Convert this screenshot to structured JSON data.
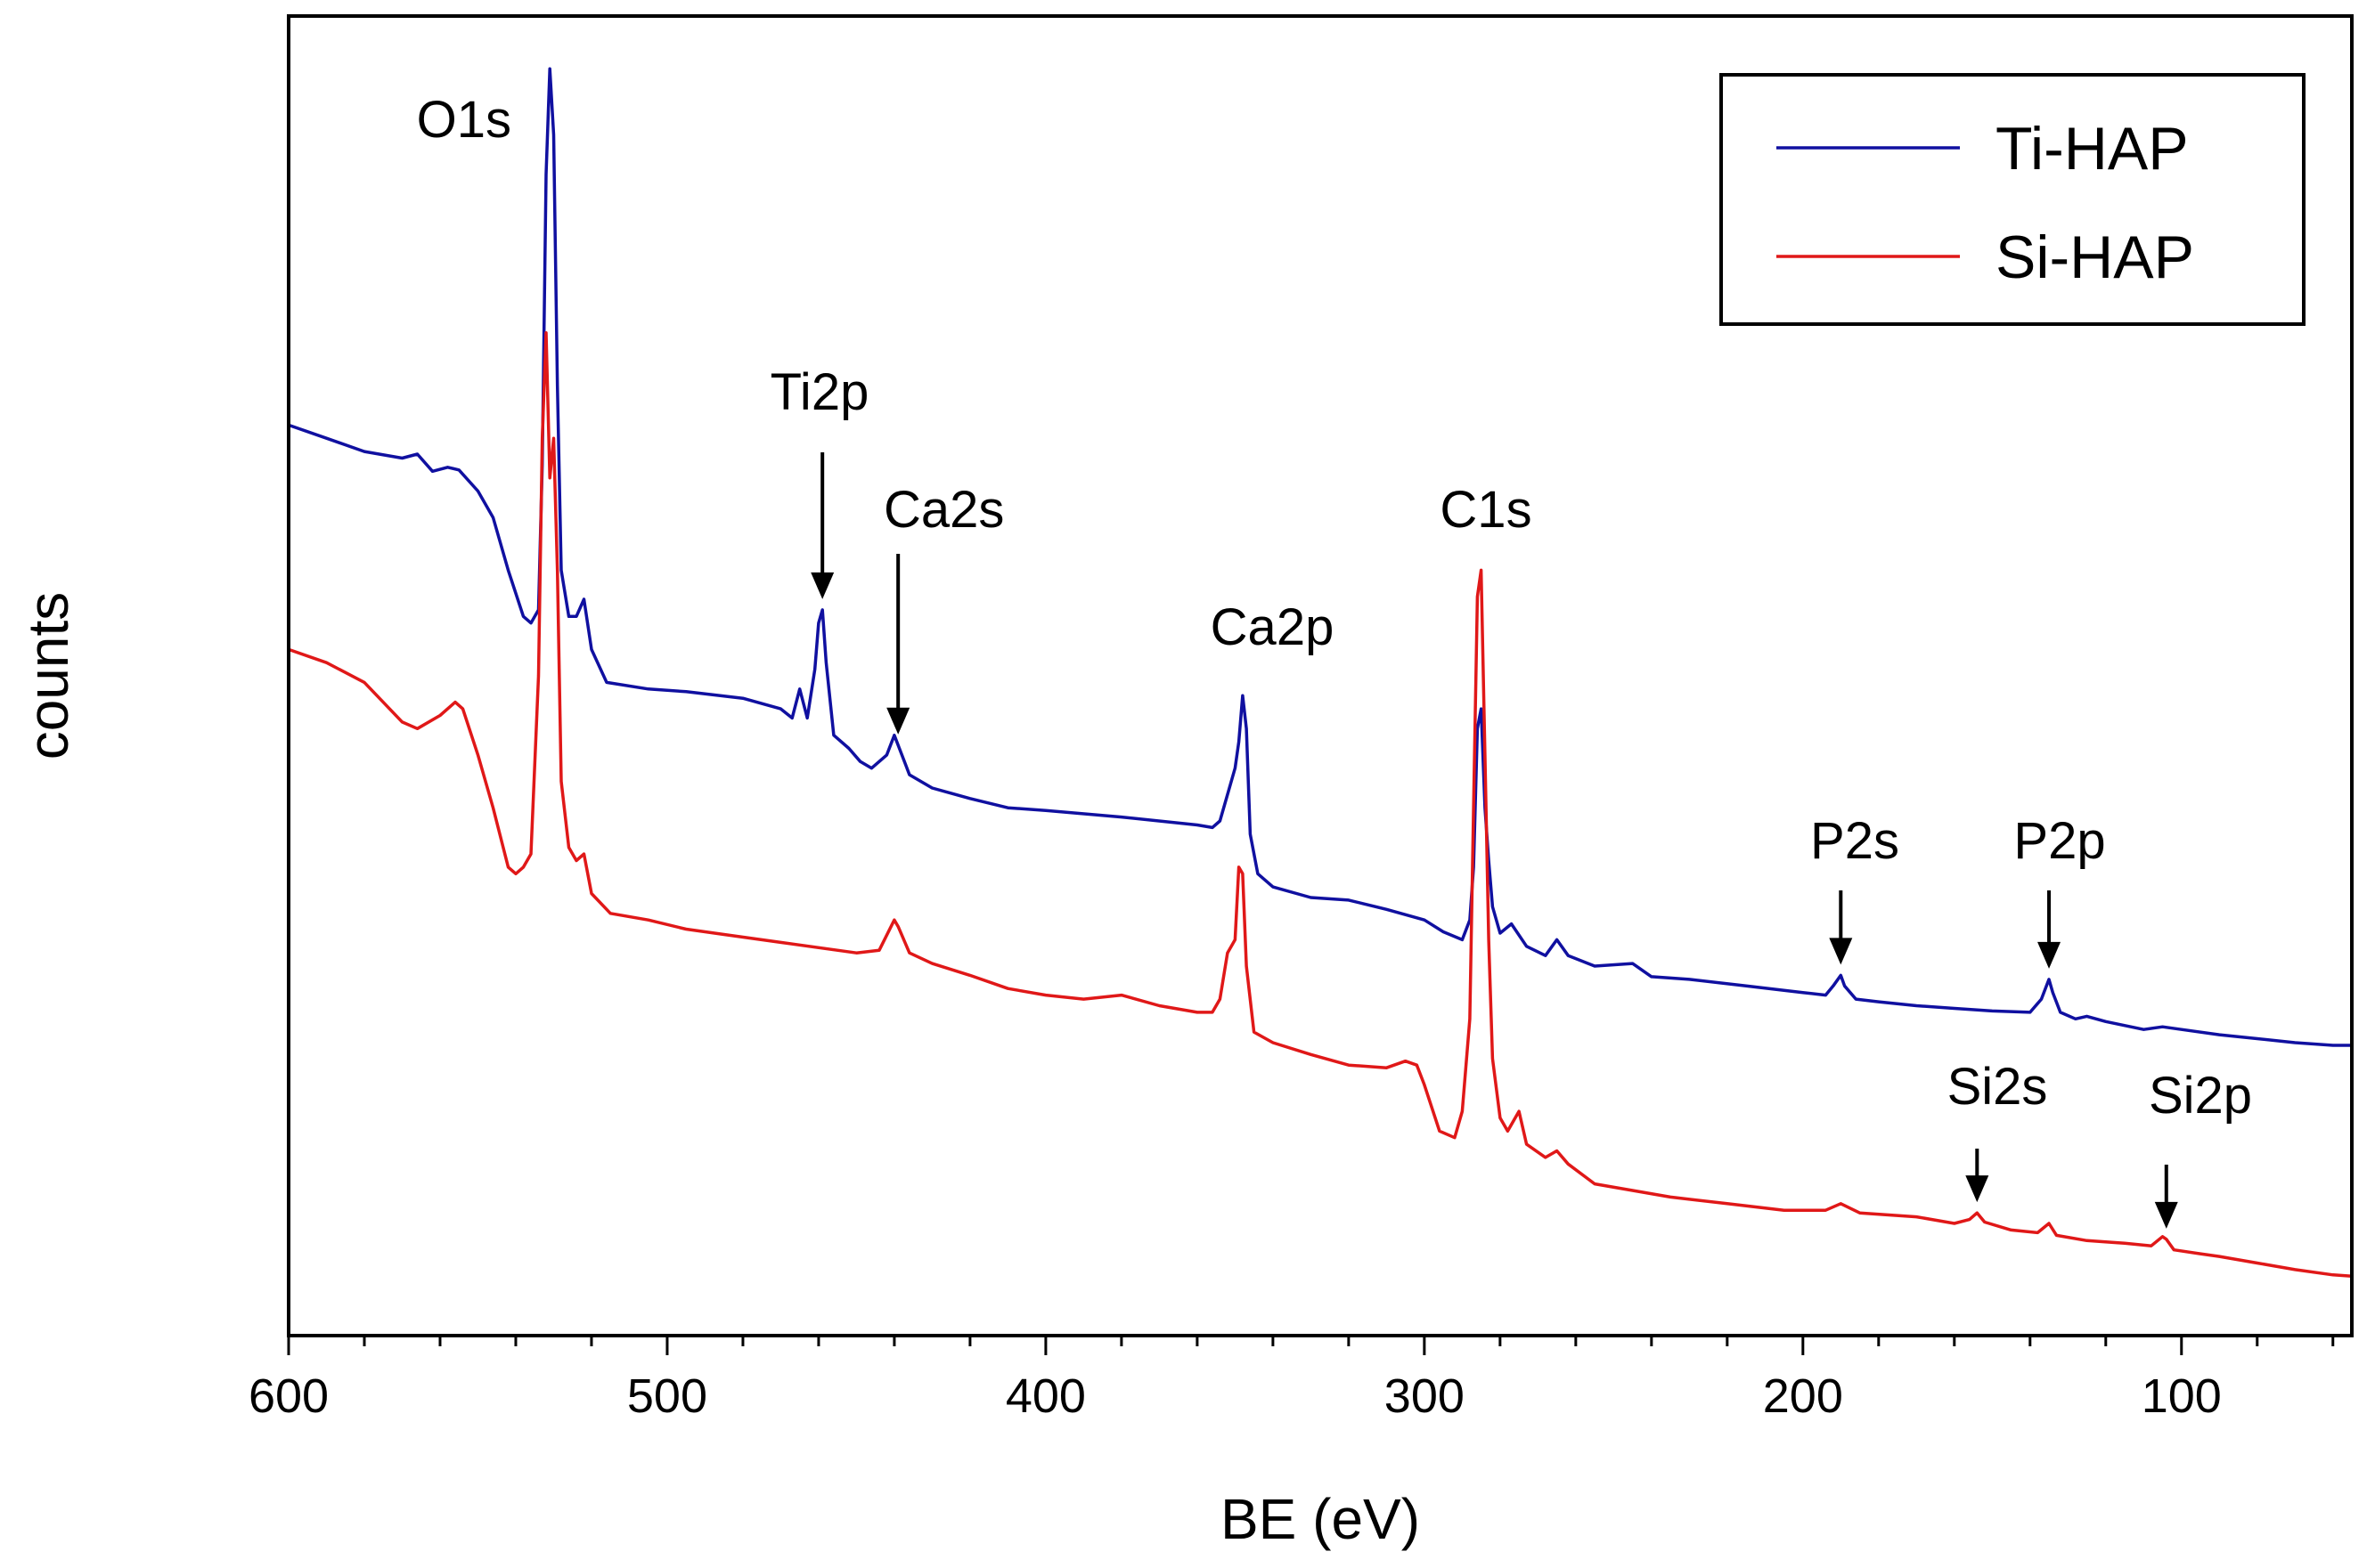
{
  "chart_data": {
    "type": "line",
    "title": "",
    "xlabel": "BE (eV)",
    "ylabel": "counts",
    "xlim": [
      600,
      55
    ],
    "x_reversed": true,
    "ylim": [
      0,
      100
    ],
    "y_ticks_visible": false,
    "grid": false,
    "x_ticks": [
      600,
      500,
      400,
      300,
      200,
      100
    ],
    "x_tick_labels": [
      "600",
      "500",
      "400",
      "300",
      "200",
      "100"
    ],
    "legend": {
      "position": "top-right",
      "entries": [
        "Ti-HAP",
        "Si-HAP"
      ]
    },
    "series": [
      {
        "name": "Ti-HAP",
        "color": "#1010a0",
        "points": [
          [
            600,
            69.0
          ],
          [
            590,
            68.0
          ],
          [
            580,
            67.0
          ],
          [
            570,
            66.5
          ],
          [
            566,
            66.8
          ],
          [
            562,
            65.5
          ],
          [
            558,
            65.8
          ],
          [
            555,
            65.6
          ],
          [
            550,
            64.0
          ],
          [
            546,
            62.0
          ],
          [
            542,
            58.0
          ],
          [
            538,
            54.5
          ],
          [
            536,
            54.0
          ],
          [
            534,
            55.0
          ],
          [
            533,
            66.0
          ],
          [
            532,
            88.0
          ],
          [
            531,
            96.0
          ],
          [
            530,
            91.0
          ],
          [
            529,
            72.0
          ],
          [
            528,
            58.0
          ],
          [
            526,
            54.5
          ],
          [
            524,
            54.5
          ],
          [
            522,
            55.8
          ],
          [
            520,
            52.0
          ],
          [
            516,
            49.5
          ],
          [
            505,
            49.0
          ],
          [
            495,
            48.8
          ],
          [
            480,
            48.3
          ],
          [
            470,
            47.5
          ],
          [
            467,
            46.8
          ],
          [
            465,
            49.0
          ],
          [
            463,
            46.8
          ],
          [
            461,
            50.5
          ],
          [
            460,
            54.0
          ],
          [
            459,
            55.0
          ],
          [
            458,
            51.0
          ],
          [
            456,
            45.5
          ],
          [
            452,
            44.5
          ],
          [
            449,
            43.5
          ],
          [
            446,
            43.0
          ],
          [
            442,
            44.0
          ],
          [
            440,
            45.5
          ],
          [
            438,
            44.0
          ],
          [
            436,
            42.5
          ],
          [
            430,
            41.5
          ],
          [
            420,
            40.7
          ],
          [
            410,
            40.0
          ],
          [
            400,
            39.8
          ],
          [
            380,
            39.3
          ],
          [
            360,
            38.7
          ],
          [
            356,
            38.5
          ],
          [
            354,
            39.0
          ],
          [
            352,
            41.0
          ],
          [
            350,
            43.0
          ],
          [
            349,
            45.0
          ],
          [
            348,
            48.5
          ],
          [
            347,
            46.0
          ],
          [
            346,
            38.0
          ],
          [
            344,
            35.0
          ],
          [
            340,
            34.0
          ],
          [
            330,
            33.2
          ],
          [
            320,
            33.0
          ],
          [
            310,
            32.3
          ],
          [
            300,
            31.5
          ],
          [
            295,
            30.6
          ],
          [
            290,
            30.0
          ],
          [
            288,
            31.5
          ],
          [
            287,
            35.5
          ],
          [
            286,
            46.0
          ],
          [
            285,
            47.5
          ],
          [
            284,
            40.0
          ],
          [
            283,
            36.0
          ],
          [
            282,
            32.5
          ],
          [
            280,
            30.5
          ],
          [
            277,
            31.2
          ],
          [
            273,
            29.5
          ],
          [
            268,
            28.8
          ],
          [
            265,
            30.0
          ],
          [
            262,
            28.8
          ],
          [
            255,
            28.0
          ],
          [
            245,
            28.2
          ],
          [
            240,
            27.2
          ],
          [
            230,
            27.0
          ],
          [
            215,
            26.5
          ],
          [
            200,
            26.0
          ],
          [
            194,
            25.8
          ],
          [
            192,
            26.5
          ],
          [
            190,
            27.3
          ],
          [
            189,
            26.5
          ],
          [
            186,
            25.5
          ],
          [
            180,
            25.3
          ],
          [
            170,
            25.0
          ],
          [
            160,
            24.8
          ],
          [
            150,
            24.6
          ],
          [
            140,
            24.5
          ],
          [
            137,
            25.5
          ],
          [
            135,
            27.0
          ],
          [
            134,
            26.0
          ],
          [
            132,
            24.5
          ],
          [
            128,
            24.0
          ],
          [
            125,
            24.2
          ],
          [
            120,
            23.8
          ],
          [
            110,
            23.2
          ],
          [
            105,
            23.4
          ],
          [
            100,
            23.2
          ],
          [
            90,
            22.8
          ],
          [
            80,
            22.5
          ],
          [
            70,
            22.2
          ],
          [
            60,
            22.0
          ],
          [
            55,
            22.0
          ]
        ]
      },
      {
        "name": "Si-HAP",
        "color": "#e01818",
        "points": [
          [
            600,
            52.0
          ],
          [
            590,
            51.0
          ],
          [
            580,
            49.5
          ],
          [
            570,
            46.5
          ],
          [
            566,
            46.0
          ],
          [
            560,
            47.0
          ],
          [
            556,
            48.0
          ],
          [
            554,
            47.5
          ],
          [
            550,
            44.0
          ],
          [
            546,
            40.0
          ],
          [
            542,
            35.5
          ],
          [
            540,
            35.0
          ],
          [
            538,
            35.5
          ],
          [
            536,
            36.5
          ],
          [
            534,
            50.0
          ],
          [
            533,
            68.0
          ],
          [
            532,
            76.0
          ],
          [
            531,
            65.0
          ],
          [
            530,
            68.0
          ],
          [
            529,
            58.0
          ],
          [
            528,
            42.0
          ],
          [
            526,
            37.0
          ],
          [
            524,
            36.0
          ],
          [
            522,
            36.5
          ],
          [
            520,
            33.5
          ],
          [
            515,
            32.0
          ],
          [
            505,
            31.5
          ],
          [
            495,
            30.8
          ],
          [
            485,
            30.4
          ],
          [
            470,
            29.8
          ],
          [
            450,
            29.0
          ],
          [
            444,
            29.2
          ],
          [
            440,
            31.5
          ],
          [
            439,
            31.0
          ],
          [
            436,
            29.0
          ],
          [
            430,
            28.2
          ],
          [
            420,
            27.3
          ],
          [
            410,
            26.3
          ],
          [
            400,
            25.8
          ],
          [
            390,
            25.5
          ],
          [
            380,
            25.8
          ],
          [
            370,
            25.0
          ],
          [
            360,
            24.5
          ],
          [
            356,
            24.5
          ],
          [
            354,
            25.5
          ],
          [
            352,
            29.0
          ],
          [
            350,
            30.0
          ],
          [
            349,
            35.5
          ],
          [
            348,
            35.0
          ],
          [
            347,
            28.0
          ],
          [
            345,
            23.0
          ],
          [
            340,
            22.2
          ],
          [
            330,
            21.3
          ],
          [
            320,
            20.5
          ],
          [
            310,
            20.3
          ],
          [
            305,
            20.8
          ],
          [
            302,
            20.5
          ],
          [
            300,
            19.0
          ],
          [
            296,
            15.5
          ],
          [
            292,
            15.0
          ],
          [
            290,
            17.0
          ],
          [
            288,
            24.0
          ],
          [
            287,
            40.0
          ],
          [
            286,
            56.0
          ],
          [
            285,
            58.0
          ],
          [
            284,
            44.0
          ],
          [
            283,
            30.0
          ],
          [
            282,
            21.0
          ],
          [
            280,
            16.5
          ],
          [
            278,
            15.5
          ],
          [
            275,
            17.0
          ],
          [
            273,
            14.5
          ],
          [
            268,
            13.5
          ],
          [
            265,
            14.0
          ],
          [
            262,
            13.0
          ],
          [
            255,
            11.5
          ],
          [
            245,
            11.0
          ],
          [
            235,
            10.5
          ],
          [
            220,
            10.0
          ],
          [
            205,
            9.5
          ],
          [
            194,
            9.5
          ],
          [
            190,
            10.0
          ],
          [
            185,
            9.3
          ],
          [
            170,
            9.0
          ],
          [
            160,
            8.5
          ],
          [
            156,
            8.8
          ],
          [
            154,
            9.3
          ],
          [
            152,
            8.6
          ],
          [
            145,
            8.0
          ],
          [
            138,
            7.8
          ],
          [
            135,
            8.5
          ],
          [
            133,
            7.6
          ],
          [
            125,
            7.2
          ],
          [
            115,
            7.0
          ],
          [
            108,
            6.8
          ],
          [
            105,
            7.5
          ],
          [
            104,
            7.3
          ],
          [
            102,
            6.5
          ],
          [
            95,
            6.2
          ],
          [
            90,
            6.0
          ],
          [
            80,
            5.5
          ],
          [
            70,
            5.0
          ],
          [
            60,
            4.6
          ],
          [
            55,
            4.5
          ]
        ]
      }
    ],
    "annotations": [
      {
        "label": "O1s",
        "x": 532,
        "arrow": false,
        "anchor": "end"
      },
      {
        "label": "Ti2p",
        "x": 459,
        "arrow": true,
        "target": "Ti-HAP",
        "anchor": "middle"
      },
      {
        "label": "Ca2s",
        "x": 439,
        "arrow": true,
        "target": "Ti-HAP",
        "anchor": "start"
      },
      {
        "label": "Ca2p",
        "x": 348,
        "arrow": false,
        "anchor": "middle"
      },
      {
        "label": "C1s",
        "x": 285,
        "arrow": false,
        "anchor": "middle"
      },
      {
        "label": "P2s",
        "x": 190,
        "arrow": true,
        "target": "Ti-HAP",
        "anchor": "middle"
      },
      {
        "label": "P2p",
        "x": 135,
        "arrow": true,
        "target": "Ti-HAP",
        "anchor": "middle"
      },
      {
        "label": "Si2s",
        "x": 154,
        "arrow": true,
        "target": "Si-HAP",
        "anchor": "middle"
      },
      {
        "label": "Si2p",
        "x": 104,
        "arrow": true,
        "target": "Si-HAP",
        "anchor": "middle"
      }
    ]
  }
}
